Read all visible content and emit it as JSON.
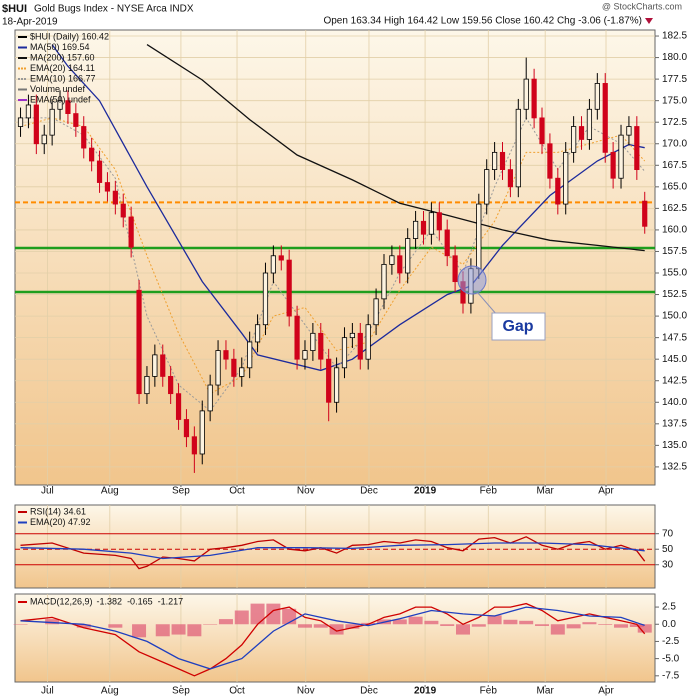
{
  "chart_data": [
    {
      "type": "candlestick",
      "symbol": "$HUI",
      "title": "Gold Bugs Index - NYSE Arca INDX",
      "subtitle": "18-Apr-2019",
      "quote": "Open 163.34  High 164.42  Low 159.56  Close 160.42  Chg -3.06 (-1.87%)",
      "source": "@ StockCharts.com",
      "annotation": "Gap",
      "name": "$HUI (Daily) 160.42",
      "up_color": "#000000",
      "down_color": "#d0021b",
      "xlim": [
        -0.7,
        80.3
      ],
      "xticks": [
        {
          "value": 3.4,
          "label": "Jul"
        },
        {
          "value": 11.3,
          "label": "Aug"
        },
        {
          "value": 20.3,
          "label": "Sep"
        },
        {
          "value": 27.4,
          "label": "Oct"
        },
        {
          "value": 36.1,
          "label": "Nov"
        },
        {
          "value": 44.1,
          "label": "Dec"
        },
        {
          "value": 51.2,
          "label": "2019"
        },
        {
          "value": 59.2,
          "label": "Feb"
        },
        {
          "value": 66.4,
          "label": "Mar"
        },
        {
          "value": 74.1,
          "label": "Apr"
        }
      ],
      "ylim": [
        130.4,
        183.2
      ],
      "yticks": [
        132.5,
        {
          "value": 135,
          "label": "135.0"
        },
        137.5,
        {
          "value": 140,
          "label": "140.0"
        },
        142.5,
        {
          "value": 145,
          "label": "145.0"
        },
        147.5,
        {
          "value": 150,
          "label": "150.0"
        },
        152.5,
        {
          "value": 155,
          "label": "155.0"
        },
        157.5,
        {
          "value": 160,
          "label": "160.0"
        },
        162.5,
        {
          "value": 165,
          "label": "165.0"
        },
        167.5,
        {
          "value": 170,
          "label": "170.0"
        },
        172.5,
        {
          "value": 175,
          "label": "175.0"
        },
        177.5,
        {
          "value": 180,
          "label": "180.0"
        },
        182.5
      ],
      "grid": true,
      "open": [
        172,
        173,
        174.5,
        170,
        171,
        174,
        175,
        173.5,
        172,
        169.5,
        168,
        165.5,
        164.5,
        163,
        161.5,
        153,
        141,
        143,
        145.5,
        143,
        141,
        138,
        136,
        134,
        139,
        142,
        146,
        145,
        143,
        144,
        147,
        149,
        155,
        157,
        156.5,
        150,
        145,
        146,
        148,
        145,
        140,
        144,
        147.5,
        148,
        145,
        149,
        152,
        156,
        157,
        155,
        159,
        161,
        159.5,
        162,
        160,
        157,
        154,
        151.5,
        155.5,
        163,
        167,
        169,
        167,
        165,
        174,
        177.5,
        173,
        170,
        166,
        163,
        169,
        172,
        170.5,
        174,
        177,
        169,
        166,
        171,
        172,
        163.34
      ],
      "high": [
        174.2,
        175.7,
        175.7,
        172.2,
        175.2,
        176.2,
        176.2,
        174.7,
        173.2,
        170.7,
        169.2,
        166.7,
        165.7,
        164.2,
        162.7,
        154.2,
        144.2,
        146.7,
        146.7,
        144.2,
        142.2,
        139.2,
        137.2,
        140.2,
        143.2,
        147.2,
        147.2,
        146.2,
        145.2,
        148.2,
        150.2,
        156.2,
        158.2,
        158.2,
        157.7,
        151.2,
        147.2,
        149.2,
        149.2,
        146.2,
        145.2,
        148.7,
        149.2,
        149.2,
        150.2,
        153.2,
        157.2,
        158.2,
        158.2,
        160.2,
        162.2,
        162.2,
        163.2,
        163.2,
        161.2,
        158.2,
        155.2,
        156.7,
        164.2,
        168.2,
        170.2,
        170.2,
        168.2,
        175.2,
        180,
        178.7,
        174.2,
        171.2,
        167.2,
        170.2,
        173.2,
        173.2,
        175.2,
        178.2,
        178.2,
        170.2,
        172.2,
        173.2,
        173.2,
        164.42
      ],
      "low": [
        170.8,
        171.8,
        168.8,
        168.8,
        169.8,
        172.8,
        172.3,
        170.8,
        168.3,
        166.8,
        164.3,
        163.3,
        161.8,
        160.3,
        156.8,
        139.8,
        139.8,
        141.8,
        141.8,
        139.8,
        136.8,
        134.8,
        131.8,
        132.8,
        137.8,
        140.8,
        143.8,
        141.8,
        141.8,
        142.8,
        145.8,
        147.8,
        153.8,
        155.3,
        148.8,
        143.8,
        143.8,
        144.8,
        143.8,
        137.8,
        138.8,
        142.8,
        146.3,
        143.8,
        143.8,
        147.8,
        150.8,
        154.8,
        153.8,
        153.8,
        157.8,
        158.3,
        158.3,
        158.8,
        155.8,
        152.8,
        150.3,
        150.3,
        154.3,
        161.8,
        165.8,
        165.8,
        163.8,
        163.8,
        172.8,
        171.8,
        168.8,
        164.8,
        161.8,
        161.8,
        167.8,
        169.3,
        169.3,
        172.8,
        167.8,
        164.8,
        164.8,
        169.8,
        165.8,
        159.56
      ],
      "close": [
        173,
        174.5,
        170,
        171,
        174,
        175,
        173.5,
        172,
        169.5,
        168,
        165.5,
        164.5,
        163,
        161.5,
        158,
        141,
        143,
        145.5,
        143,
        141,
        138,
        136,
        134,
        139,
        142,
        146,
        145,
        143,
        144,
        147,
        149,
        155,
        157,
        156.5,
        150,
        145,
        146,
        148,
        145,
        140,
        144,
        147.5,
        148,
        145,
        149,
        152,
        156,
        157,
        155,
        159,
        161,
        159.5,
        162,
        160,
        157,
        154,
        151.5,
        155.5,
        163,
        167,
        169,
        167,
        165,
        174,
        177.5,
        173,
        170,
        166,
        163,
        169,
        172,
        170.5,
        174,
        177,
        169,
        166,
        171,
        172,
        167,
        160.42
      ],
      "series": [
        {
          "name": "MA(50) 169.54",
          "color": "#1c2a9c",
          "x": [
            4,
            6,
            10,
            16,
            23,
            28,
            30,
            38,
            42,
            48,
            54,
            57,
            61,
            67,
            73,
            77,
            79
          ],
          "values": [
            181.5,
            179,
            175,
            165,
            154,
            148,
            145.5,
            143.7,
            145,
            149,
            152.5,
            153.5,
            158.2,
            164,
            168,
            169.9,
            169.54
          ]
        },
        {
          "name": "MA(200) 157.60",
          "color": "#111111",
          "x": [
            16,
            23,
            29,
            35,
            42,
            48,
            54,
            61,
            67,
            73,
            79
          ],
          "values": [
            181.5,
            177.4,
            172.8,
            168.7,
            165.8,
            163.1,
            161.7,
            160,
            158.8,
            158.2,
            157.6
          ]
        },
        {
          "name": "EMA(20) 164.11",
          "color": "#f0a030",
          "dash": true,
          "x": [
            0,
            4,
            8,
            12,
            16,
            20,
            24,
            28,
            32,
            36,
            40,
            44,
            48,
            52,
            56,
            60,
            64,
            68,
            72,
            76,
            79
          ],
          "values": [
            172,
            173,
            172,
            167,
            157,
            148,
            141,
            143,
            150,
            151,
            146,
            147,
            153,
            158,
            156,
            161,
            169,
            169,
            170,
            171,
            168
          ]
        },
        {
          "name": "EMA(10) 166.77",
          "color": "#9a9a9a",
          "dash": true,
          "x": [
            0,
            4,
            8,
            12,
            16,
            20,
            24,
            28,
            32,
            36,
            40,
            44,
            48,
            52,
            56,
            60,
            64,
            68,
            72,
            76,
            79
          ],
          "values": [
            173,
            173,
            171,
            166,
            150,
            142,
            139,
            144,
            154,
            149,
            144,
            148,
            155,
            160,
            155,
            165,
            173,
            167,
            172,
            170,
            166.8
          ]
        }
      ],
      "legend_extra": [
        {
          "name": "Volume undef",
          "color": "#777777"
        },
        {
          "name": "EMA(50) undef",
          "color": "#9b30c8"
        }
      ],
      "hlines": [
        {
          "value": 163.2,
          "color": "#ff8c00",
          "dash": true
        },
        {
          "value": 157.9,
          "color": "#1e9e1e"
        },
        {
          "value": 152.8,
          "color": "#1e9e1e"
        }
      ]
    },
    {
      "type": "line",
      "ylim": [
        0,
        107
      ],
      "yticks": [
        30,
        50,
        70
      ],
      "grid": false,
      "hlines": [
        {
          "value": 70,
          "color": "#cc0000"
        },
        {
          "value": 50,
          "color": "#cc0000",
          "dash": true
        },
        {
          "value": 30,
          "color": "#cc0000"
        }
      ],
      "series": [
        {
          "name": "RSI(14) 34.61",
          "color": "#c00000",
          "x": [
            0,
            4,
            8,
            12,
            14,
            15,
            16,
            18,
            20,
            22,
            24,
            26,
            28,
            30,
            32,
            34,
            36,
            38,
            40,
            42,
            44,
            46,
            48,
            50,
            52,
            54,
            56,
            58,
            60,
            62,
            64,
            66,
            68,
            70,
            72,
            74,
            76,
            78,
            79
          ],
          "values": [
            55,
            58,
            45,
            42,
            38,
            25,
            28,
            40,
            38,
            35,
            50,
            52,
            55,
            60,
            62,
            50,
            48,
            52,
            45,
            55,
            56,
            60,
            58,
            62,
            60,
            52,
            48,
            63,
            65,
            58,
            66,
            55,
            50,
            57,
            60,
            50,
            55,
            48,
            34.61
          ]
        },
        {
          "name": "EMA(20) 47.92",
          "color": "#1f3fbf",
          "x": [
            0,
            8,
            14,
            18,
            24,
            30,
            36,
            42,
            48,
            54,
            60,
            66,
            72,
            79
          ],
          "values": [
            52,
            50,
            45,
            38,
            42,
            52,
            52,
            51,
            55,
            56,
            58,
            58,
            56,
            47.92
          ]
        }
      ]
    },
    {
      "type": "macd",
      "title": "MACD(12,26,9)",
      "ylim": [
        -8.4,
        4.4
      ],
      "yticks": [
        2.5,
        {
          "value": 0,
          "label": "0.0"
        },
        -2.5,
        {
          "value": -5,
          "label": "-5.0"
        },
        -7.5
      ],
      "grid": false,
      "series": [
        {
          "name": "-1.382",
          "color": "#d00000",
          "x": [
            0,
            4,
            8,
            12,
            15,
            18,
            20,
            22,
            24,
            26,
            28,
            30,
            32,
            34,
            36,
            38,
            40,
            42,
            44,
            46,
            48,
            50,
            52,
            54,
            56,
            58,
            60,
            62,
            64,
            66,
            68,
            70,
            72,
            74,
            76,
            78,
            79
          ],
          "values": [
            0.5,
            1,
            -0.5,
            -1.5,
            -4,
            -5.5,
            -6.5,
            -7.5,
            -6.5,
            -5,
            -3,
            0,
            2,
            2.5,
            1,
            0.5,
            -1,
            -0.5,
            0,
            1,
            1.5,
            2.5,
            2.5,
            1.5,
            0,
            1,
            2.5,
            2.5,
            3,
            2,
            0.5,
            1,
            1.5,
            1,
            0.5,
            0,
            -1.382
          ]
        },
        {
          "name": "-0.165",
          "color": "#1f3fbf",
          "x": [
            0,
            8,
            12,
            16,
            20,
            24,
            28,
            32,
            36,
            40,
            44,
            48,
            52,
            56,
            60,
            64,
            68,
            72,
            76,
            79
          ],
          "values": [
            0.5,
            0,
            -1,
            -2.5,
            -5,
            -6.5,
            -5,
            -1,
            1.5,
            0.5,
            -0.2,
            0.8,
            2,
            1.5,
            1.2,
            2.5,
            2,
            1.2,
            1,
            -0.165
          ]
        },
        {
          "name": "-1.217",
          "color": "#e0607a",
          "histogram": true,
          "x": [
            0,
            4,
            8,
            12,
            15,
            18,
            20,
            22,
            24,
            26,
            28,
            30,
            32,
            34,
            36,
            38,
            40,
            42,
            44,
            46,
            48,
            50,
            52,
            54,
            56,
            58,
            60,
            62,
            64,
            66,
            68,
            70,
            72,
            74,
            76,
            78,
            79
          ],
          "values": [
            0,
            0.75,
            -0.5,
            -0.5,
            -1.9,
            -1.75,
            -1.5,
            -1.75,
            0,
            0.75,
            2,
            3,
            3,
            2.25,
            -0.5,
            -0.5,
            -1.5,
            -0.65,
            0.2,
            0.7,
            0.7,
            1.1,
            0.5,
            -0.25,
            -1.5,
            -0.35,
            1.3,
            0.65,
            0.5,
            -0.25,
            -1.5,
            -0.6,
            0.3,
            -0.1,
            -0.5,
            -0.4,
            -1.217
          ]
        }
      ]
    }
  ]
}
